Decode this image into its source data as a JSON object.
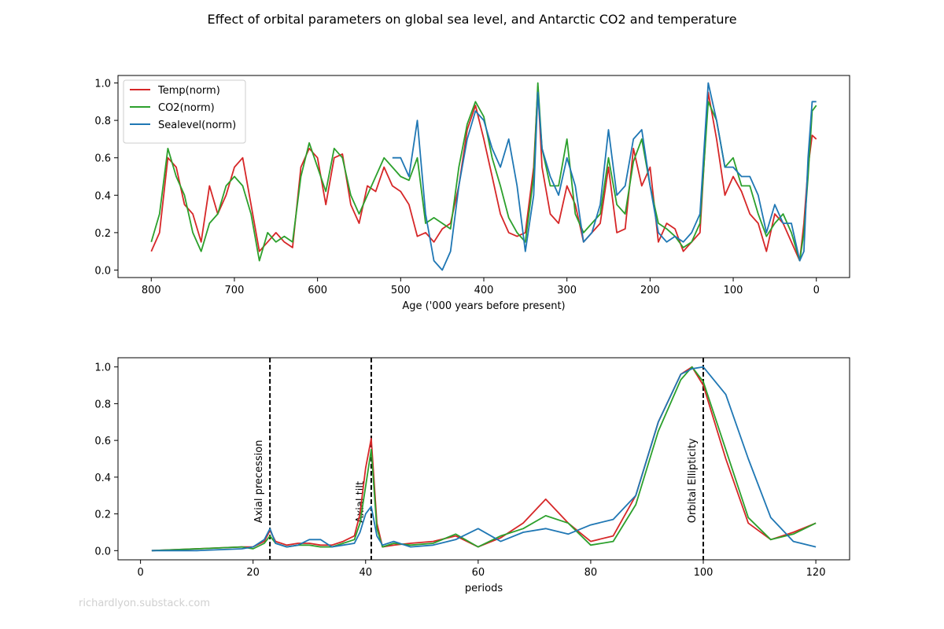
{
  "figure": {
    "suptitle": "Effect of orbital parameters on global sea level, and Antarctic CO2 and temperature",
    "watermark": "richardlyon.substack.com"
  },
  "chart_data": [
    {
      "type": "line",
      "xlabel": "Age ('000 years before present)",
      "ylabel": "",
      "xlim": [
        840,
        -40
      ],
      "ylim": [
        -0.04,
        1.04
      ],
      "x_inverted": true,
      "xticks": [
        800,
        700,
        600,
        500,
        400,
        300,
        200,
        100,
        0
      ],
      "yticks": [
        0.0,
        0.2,
        0.4,
        0.6,
        0.8,
        1.0
      ],
      "legend": "top-left",
      "x": [
        800,
        790,
        780,
        770,
        760,
        750,
        740,
        730,
        720,
        710,
        700,
        690,
        680,
        670,
        660,
        650,
        640,
        630,
        620,
        610,
        600,
        590,
        580,
        570,
        560,
        550,
        540,
        530,
        520,
        510,
        500,
        490,
        480,
        470,
        460,
        450,
        440,
        430,
        420,
        410,
        400,
        390,
        380,
        370,
        360,
        350,
        340,
        335,
        330,
        320,
        310,
        300,
        290,
        280,
        270,
        260,
        250,
        240,
        230,
        220,
        210,
        200,
        190,
        180,
        170,
        160,
        150,
        140,
        130,
        120,
        110,
        100,
        90,
        80,
        70,
        60,
        50,
        40,
        30,
        20,
        15,
        10,
        5,
        0
      ],
      "series": [
        {
          "name": "Temp(norm)",
          "color": "#d62728",
          "values": [
            0.1,
            0.2,
            0.6,
            0.55,
            0.35,
            0.3,
            0.15,
            0.45,
            0.3,
            0.4,
            0.55,
            0.6,
            0.35,
            0.1,
            0.15,
            0.2,
            0.15,
            0.12,
            0.55,
            0.65,
            0.6,
            0.35,
            0.6,
            0.62,
            0.35,
            0.25,
            0.45,
            0.42,
            0.55,
            0.45,
            0.42,
            0.35,
            0.18,
            0.2,
            0.15,
            0.22,
            0.25,
            0.45,
            0.75,
            0.88,
            0.7,
            0.5,
            0.3,
            0.2,
            0.18,
            0.2,
            0.55,
            0.98,
            0.55,
            0.3,
            0.25,
            0.45,
            0.35,
            0.15,
            0.2,
            0.25,
            0.55,
            0.2,
            0.22,
            0.65,
            0.45,
            0.55,
            0.15,
            0.25,
            0.22,
            0.1,
            0.15,
            0.2,
            0.95,
            0.7,
            0.4,
            0.5,
            0.42,
            0.3,
            0.25,
            0.1,
            0.3,
            0.25,
            0.15,
            0.05,
            0.25,
            0.55,
            0.72,
            0.7
          ]
        },
        {
          "name": "CO2(norm)",
          "color": "#2ca02c",
          "values": [
            0.15,
            0.3,
            0.65,
            0.5,
            0.4,
            0.2,
            0.1,
            0.25,
            0.3,
            0.45,
            0.5,
            0.45,
            0.3,
            0.05,
            0.2,
            0.15,
            0.18,
            0.15,
            0.5,
            0.68,
            0.55,
            0.42,
            0.65,
            0.6,
            0.4,
            0.3,
            0.4,
            0.5,
            0.6,
            0.55,
            0.5,
            0.48,
            0.6,
            0.25,
            0.28,
            0.25,
            0.22,
            0.55,
            0.78,
            0.9,
            0.82,
            0.6,
            0.45,
            0.28,
            0.2,
            0.15,
            0.5,
            1.0,
            0.65,
            0.45,
            0.45,
            0.7,
            0.3,
            0.2,
            0.25,
            0.3,
            0.6,
            0.35,
            0.3,
            0.58,
            0.7,
            0.45,
            0.25,
            0.22,
            0.18,
            0.12,
            0.15,
            0.25,
            0.9,
            0.8,
            0.55,
            0.6,
            0.45,
            0.45,
            0.3,
            0.18,
            0.25,
            0.3,
            0.2,
            0.05,
            0.2,
            0.5,
            0.85,
            0.88
          ]
        },
        {
          "name": "Sealevel(norm)",
          "color": "#1f77b4",
          "values": [
            null,
            null,
            null,
            null,
            null,
            null,
            null,
            null,
            null,
            null,
            null,
            null,
            null,
            null,
            null,
            null,
            null,
            null,
            null,
            null,
            null,
            null,
            null,
            null,
            null,
            null,
            null,
            null,
            null,
            0.6,
            0.6,
            0.5,
            0.8,
            0.3,
            0.05,
            0.0,
            0.1,
            0.45,
            0.7,
            0.85,
            0.8,
            0.65,
            0.55,
            0.7,
            0.45,
            0.1,
            0.4,
            0.95,
            0.65,
            0.5,
            0.4,
            0.6,
            0.45,
            0.15,
            0.2,
            0.35,
            0.75,
            0.4,
            0.45,
            0.7,
            0.75,
            0.45,
            0.2,
            0.15,
            0.18,
            0.15,
            0.2,
            0.3,
            1.0,
            0.8,
            0.55,
            0.55,
            0.5,
            0.5,
            0.4,
            0.2,
            0.35,
            0.25,
            0.25,
            0.05,
            0.1,
            0.6,
            0.9,
            0.9
          ]
        }
      ]
    },
    {
      "type": "line",
      "xlabel": "periods",
      "ylabel": "",
      "xlim": [
        -4,
        126
      ],
      "ylim": [
        -0.05,
        1.05
      ],
      "xticks": [
        0,
        20,
        40,
        60,
        80,
        100,
        120
      ],
      "yticks": [
        0.0,
        0.2,
        0.4,
        0.6,
        0.8,
        1.0
      ],
      "vlines": [
        {
          "x": 23,
          "label": "Axial precession"
        },
        {
          "x": 41,
          "label": "Axial tilt"
        },
        {
          "x": 100,
          "label": "Orbital Ellipticity"
        }
      ],
      "x": [
        2,
        10,
        18,
        20,
        22,
        23,
        24,
        26,
        28,
        30,
        32,
        34,
        36,
        38,
        39,
        40,
        41,
        42,
        43,
        45,
        48,
        52,
        56,
        60,
        64,
        68,
        72,
        76,
        80,
        84,
        88,
        92,
        96,
        98,
        100,
        104,
        108,
        112,
        116,
        120
      ],
      "series": [
        {
          "name": "Temp(norm)",
          "color": "#d62728",
          "values": [
            0.0,
            0.01,
            0.02,
            0.02,
            0.05,
            0.11,
            0.05,
            0.03,
            0.04,
            0.04,
            0.03,
            0.03,
            0.05,
            0.08,
            0.2,
            0.45,
            0.61,
            0.15,
            0.02,
            0.03,
            0.04,
            0.05,
            0.08,
            0.02,
            0.07,
            0.15,
            0.28,
            0.15,
            0.05,
            0.08,
            0.3,
            0.7,
            0.96,
            1.0,
            0.9,
            0.5,
            0.15,
            0.06,
            0.1,
            0.15
          ]
        },
        {
          "name": "CO2(norm)",
          "color": "#2ca02c",
          "values": [
            0.0,
            0.01,
            0.02,
            0.01,
            0.04,
            0.08,
            0.04,
            0.02,
            0.03,
            0.03,
            0.02,
            0.02,
            0.04,
            0.06,
            0.15,
            0.35,
            0.55,
            0.12,
            0.02,
            0.04,
            0.03,
            0.04,
            0.09,
            0.02,
            0.08,
            0.12,
            0.19,
            0.15,
            0.03,
            0.05,
            0.25,
            0.65,
            0.93,
            1.0,
            0.92,
            0.55,
            0.18,
            0.06,
            0.09,
            0.15
          ]
        },
        {
          "name": "Sealevel(norm)",
          "color": "#1f77b4",
          "values": [
            0.0,
            0.0,
            0.01,
            0.02,
            0.06,
            0.12,
            0.04,
            0.02,
            0.03,
            0.06,
            0.06,
            0.02,
            0.03,
            0.04,
            0.1,
            0.2,
            0.24,
            0.08,
            0.03,
            0.05,
            0.02,
            0.03,
            0.06,
            0.12,
            0.05,
            0.1,
            0.12,
            0.09,
            0.14,
            0.17,
            0.3,
            0.7,
            0.96,
            0.99,
            1.0,
            0.85,
            0.5,
            0.18,
            0.05,
            0.02
          ]
        }
      ]
    }
  ]
}
